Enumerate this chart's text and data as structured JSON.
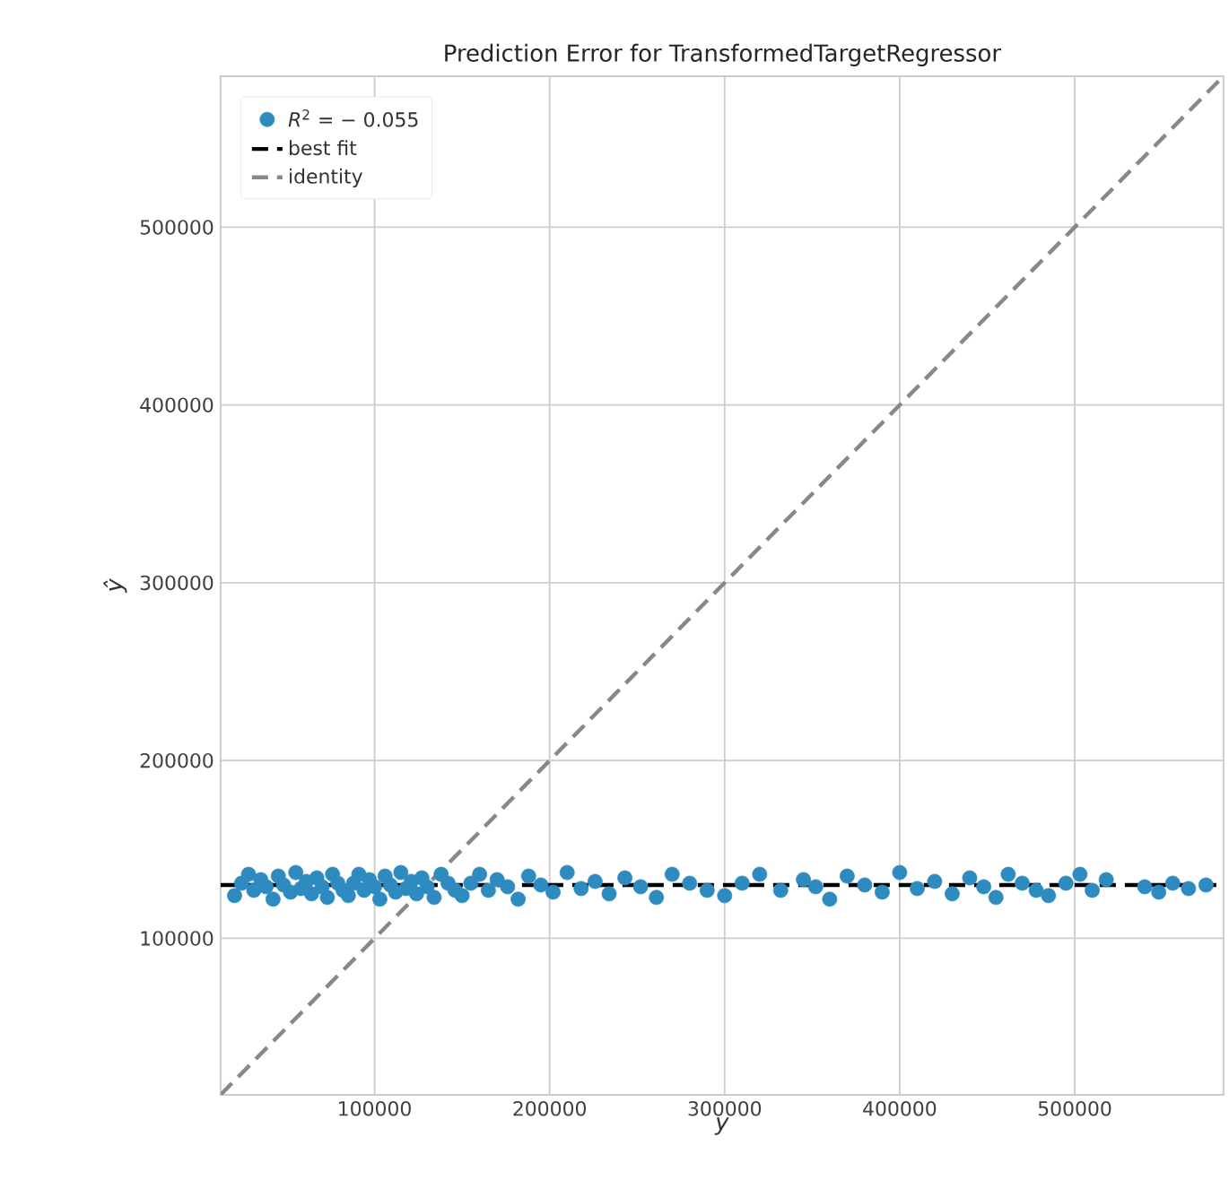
{
  "chart_data": {
    "type": "scatter",
    "title": "Prediction Error for TransformedTargetRegressor",
    "xlabel": "y",
    "ylabel": "ŷ",
    "xlim": [
      12000,
      585000
    ],
    "ylim": [
      12000,
      585000
    ],
    "xticks": [
      100000,
      200000,
      300000,
      400000,
      500000
    ],
    "yticks": [
      100000,
      200000,
      300000,
      400000,
      500000
    ],
    "grid": true,
    "legend": "top left",
    "series": [
      {
        "name": "*R*$^{2}$ = − 0.055",
        "color": "#2e8bc0",
        "marker": "circle",
        "x": [
          20000,
          24000,
          28000,
          31000,
          35000,
          38000,
          42000,
          45000,
          48000,
          52000,
          55000,
          58000,
          61000,
          64000,
          67000,
          70000,
          73000,
          76000,
          79000,
          82000,
          85000,
          88000,
          91000,
          94000,
          97000,
          100000,
          103000,
          106000,
          109000,
          112000,
          115000,
          118000,
          121000,
          124000,
          127000,
          130000,
          134000,
          138000,
          142000,
          146000,
          150000,
          155000,
          160000,
          165000,
          170000,
          176000,
          182000,
          188000,
          195000,
          202000,
          210000,
          218000,
          226000,
          234000,
          243000,
          252000,
          261000,
          270000,
          280000,
          290000,
          300000,
          310000,
          320000,
          332000,
          345000,
          352000,
          360000,
          370000,
          380000,
          390000,
          400000,
          410000,
          420000,
          430000,
          440000,
          448000,
          455000,
          462000,
          470000,
          478000,
          485000,
          495000,
          503000,
          510000,
          518000,
          540000,
          548000,
          556000,
          565000,
          575000
        ],
        "values": [
          124000,
          131000,
          136000,
          127000,
          133000,
          129000,
          122000,
          135000,
          130000,
          126000,
          137000,
          128000,
          132000,
          125000,
          134000,
          129000,
          123000,
          136000,
          131000,
          127000,
          124000,
          131000,
          136000,
          127000,
          133000,
          129000,
          122000,
          135000,
          130000,
          126000,
          137000,
          128000,
          132000,
          125000,
          134000,
          129000,
          123000,
          136000,
          131000,
          127000,
          124000,
          131000,
          136000,
          127000,
          133000,
          129000,
          122000,
          135000,
          130000,
          126000,
          137000,
          128000,
          132000,
          125000,
          134000,
          129000,
          123000,
          136000,
          131000,
          127000,
          124000,
          131000,
          136000,
          127000,
          133000,
          129000,
          122000,
          135000,
          130000,
          126000,
          137000,
          128000,
          132000,
          125000,
          134000,
          129000,
          123000,
          136000,
          131000,
          127000,
          124000,
          131000,
          136000,
          127000,
          133000,
          129000,
          126000,
          131000,
          128000,
          130000
        ]
      },
      {
        "type": "line",
        "name": "best fit",
        "color": "#000000",
        "line_style": "dashed",
        "x": [
          12000,
          585000
        ],
        "values": [
          130000,
          130000
        ]
      },
      {
        "type": "line",
        "name": "identity",
        "color": "#888888",
        "line_style": "dashed",
        "x": [
          12000,
          585000
        ],
        "values": [
          12000,
          585000
        ]
      }
    ]
  }
}
